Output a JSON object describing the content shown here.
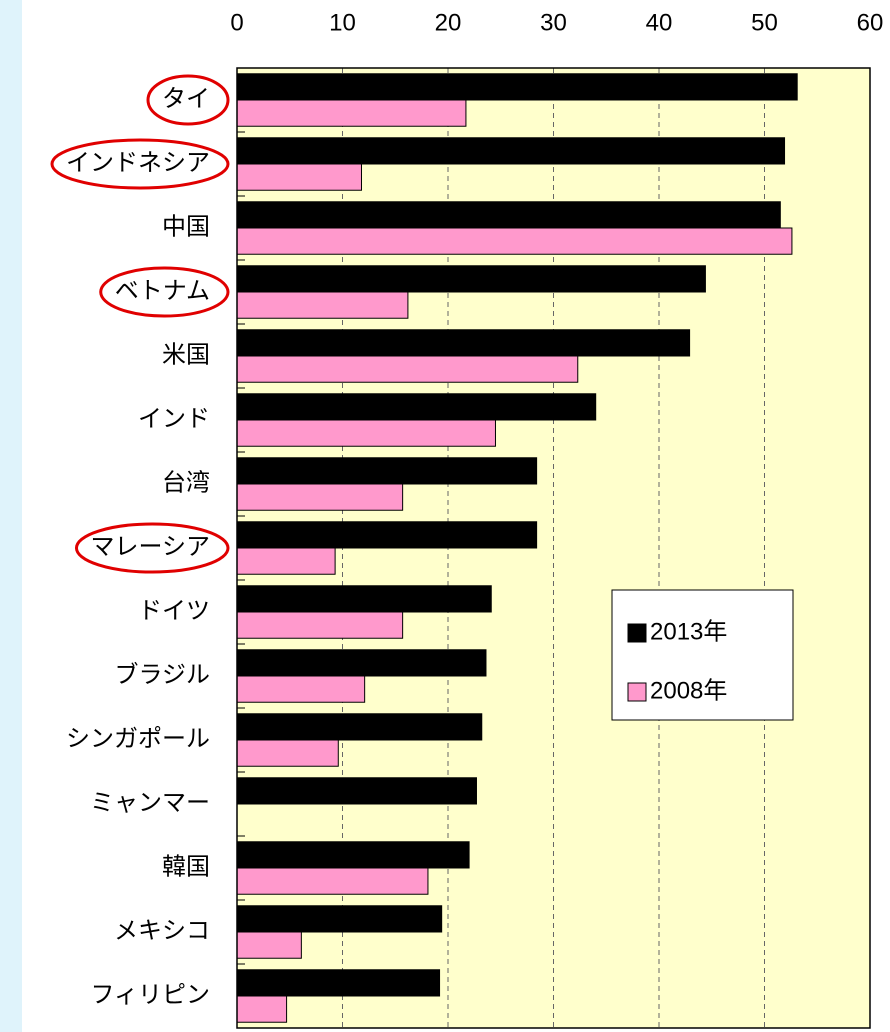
{
  "chart_data": {
    "type": "bar",
    "orientation": "horizontal",
    "categories": [
      "タイ",
      "インドネシア",
      "中国",
      "ベトナム",
      "米国",
      "インド",
      "台湾",
      "マレーシア",
      "ドイツ",
      "ブラジル",
      "シンガポール",
      "ミャンマー",
      "韓国",
      "メキシコ",
      "フィリピン"
    ],
    "series": [
      {
        "name": "2013年",
        "color": "#000000",
        "values": [
          53.1,
          51.9,
          51.5,
          44.4,
          42.9,
          34.0,
          28.4,
          28.4,
          24.1,
          23.6,
          23.2,
          22.7,
          22.0,
          19.4,
          19.2
        ]
      },
      {
        "name": "2008年",
        "color": "#ff99cc",
        "values": [
          21.7,
          11.8,
          52.6,
          16.2,
          32.3,
          24.5,
          15.7,
          9.3,
          15.7,
          12.1,
          9.6,
          null,
          18.1,
          6.1,
          4.7
        ]
      }
    ],
    "xlim": [
      0,
      60
    ],
    "xticks": [
      0,
      10,
      20,
      30,
      40,
      50,
      60
    ],
    "grid": true,
    "highlighted_categories": [
      0,
      1,
      3,
      7
    ],
    "highlight_color": "#e00000",
    "plot_background": "#ffffcc"
  }
}
